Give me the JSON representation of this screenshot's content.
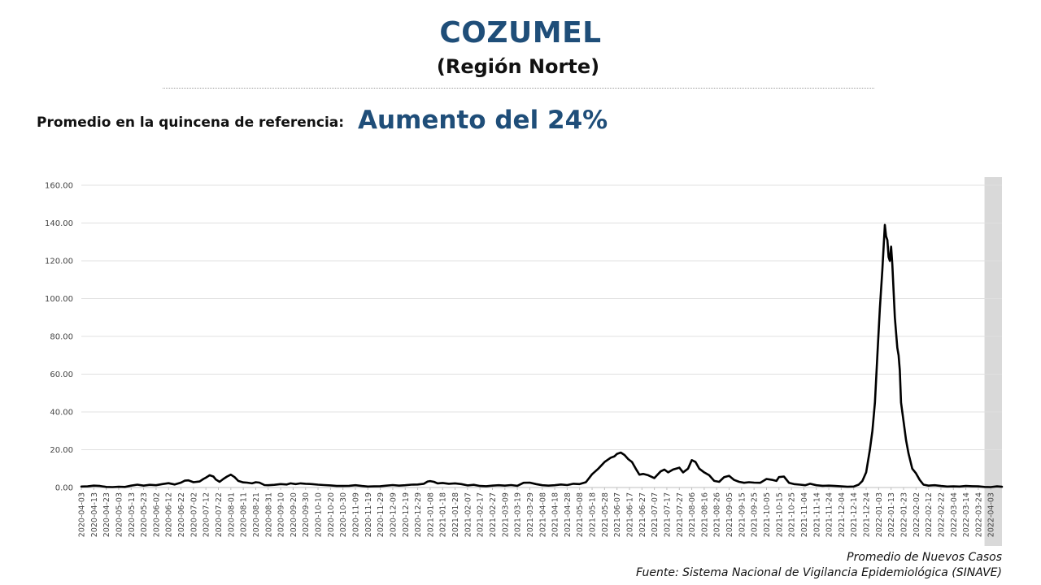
{
  "header": {
    "title": "COZUMEL",
    "subtitle": "(Región Norte)",
    "reference_label": "Promedio en la quincena de referencia:",
    "reference_value": "Aumento del 24%"
  },
  "footer": {
    "legend_text": "Promedio de Nuevos Casos",
    "source_text": "Fuente: Sistema Nacional de Vigilancia Epidemiológica (SINAVE)"
  },
  "chart_data": {
    "type": "line",
    "title": "",
    "xlabel": "",
    "ylabel": "",
    "ylim": [
      0,
      160
    ],
    "yticks": [
      "0.00",
      "20.00",
      "40.00",
      "60.00",
      "80.00",
      "100.00",
      "120.00",
      "140.00",
      "160.00"
    ],
    "grid": true,
    "line_color": "#000000",
    "shade_color": "#d9d9d9",
    "shaded_range": [
      "2022-03-29",
      "2022-04-12"
    ],
    "x_start": "2020-04-03",
    "x_end": "2022-04-12",
    "xticks": [
      "2020-04-03",
      "2020-04-13",
      "2020-04-23",
      "2020-05-03",
      "2020-05-13",
      "2020-05-23",
      "2020-06-02",
      "2020-06-12",
      "2020-06-22",
      "2020-07-02",
      "2020-07-12",
      "2020-07-22",
      "2020-08-01",
      "2020-08-11",
      "2020-08-21",
      "2020-08-31",
      "2020-09-10",
      "2020-09-20",
      "2020-09-30",
      "2020-10-10",
      "2020-10-20",
      "2020-10-30",
      "2020-11-09",
      "2020-11-19",
      "2020-11-29",
      "2020-12-09",
      "2020-12-19",
      "2020-12-29",
      "2021-01-08",
      "2021-01-18",
      "2021-01-28",
      "2021-02-07",
      "2021-02-17",
      "2021-02-27",
      "2021-03-09",
      "2021-03-19",
      "2021-03-29",
      "2021-04-08",
      "2021-04-18",
      "2021-04-28",
      "2021-05-08",
      "2021-05-18",
      "2021-05-28",
      "2021-06-07",
      "2021-06-17",
      "2021-06-27",
      "2021-07-07",
      "2021-07-17",
      "2021-07-27",
      "2021-08-06",
      "2021-08-16",
      "2021-08-26",
      "2021-09-05",
      "2021-09-15",
      "2021-09-25",
      "2021-10-05",
      "2021-10-15",
      "2021-10-25",
      "2021-11-04",
      "2021-11-14",
      "2021-11-24",
      "2021-12-04",
      "2021-12-14",
      "2021-12-24",
      "2022-01-03",
      "2022-01-13",
      "2022-01-23",
      "2022-02-02",
      "2022-02-12",
      "2022-02-22",
      "2022-03-04",
      "2022-03-14",
      "2022-03-24",
      "2022-04-03"
    ],
    "series": [
      {
        "name": "Promedio de Nuevos Casos",
        "points": [
          [
            "2020-04-03",
            0.5
          ],
          [
            "2020-04-08",
            0.6
          ],
          [
            "2020-04-13",
            1.0
          ],
          [
            "2020-04-18",
            0.8
          ],
          [
            "2020-04-23",
            0.3
          ],
          [
            "2020-04-28",
            0.2
          ],
          [
            "2020-05-03",
            0.4
          ],
          [
            "2020-05-08",
            0.3
          ],
          [
            "2020-05-13",
            1.0
          ],
          [
            "2020-05-18",
            1.5
          ],
          [
            "2020-05-23",
            1.0
          ],
          [
            "2020-05-28",
            1.4
          ],
          [
            "2020-06-02",
            1.2
          ],
          [
            "2020-06-07",
            1.8
          ],
          [
            "2020-06-12",
            2.3
          ],
          [
            "2020-06-17",
            1.6
          ],
          [
            "2020-06-22",
            2.6
          ],
          [
            "2020-06-25",
            3.6
          ],
          [
            "2020-06-28",
            3.8
          ],
          [
            "2020-07-02",
            2.8
          ],
          [
            "2020-07-07",
            3.2
          ],
          [
            "2020-07-10",
            4.5
          ],
          [
            "2020-07-12",
            5.2
          ],
          [
            "2020-07-15",
            6.5
          ],
          [
            "2020-07-18",
            5.8
          ],
          [
            "2020-07-20",
            4.2
          ],
          [
            "2020-07-23",
            3.0
          ],
          [
            "2020-07-26",
            4.5
          ],
          [
            "2020-07-29",
            5.8
          ],
          [
            "2020-08-01",
            6.8
          ],
          [
            "2020-08-04",
            5.5
          ],
          [
            "2020-08-07",
            3.5
          ],
          [
            "2020-08-11",
            2.7
          ],
          [
            "2020-08-14",
            2.6
          ],
          [
            "2020-08-18",
            2.2
          ],
          [
            "2020-08-21",
            2.8
          ],
          [
            "2020-08-24",
            2.6
          ],
          [
            "2020-08-28",
            1.3
          ],
          [
            "2020-08-31",
            1.2
          ],
          [
            "2020-09-05",
            1.4
          ],
          [
            "2020-09-10",
            1.8
          ],
          [
            "2020-09-15",
            1.6
          ],
          [
            "2020-09-18",
            2.2
          ],
          [
            "2020-09-22",
            1.8
          ],
          [
            "2020-09-26",
            2.2
          ],
          [
            "2020-09-30",
            2.0
          ],
          [
            "2020-10-05",
            1.8
          ],
          [
            "2020-10-10",
            1.5
          ],
          [
            "2020-10-15",
            1.3
          ],
          [
            "2020-10-20",
            1.1
          ],
          [
            "2020-10-25",
            0.8
          ],
          [
            "2020-10-30",
            0.8
          ],
          [
            "2020-11-04",
            0.9
          ],
          [
            "2020-11-09",
            1.2
          ],
          [
            "2020-11-14",
            0.8
          ],
          [
            "2020-11-19",
            0.5
          ],
          [
            "2020-11-24",
            0.6
          ],
          [
            "2020-11-29",
            0.7
          ],
          [
            "2020-12-04",
            1.0
          ],
          [
            "2020-12-09",
            1.3
          ],
          [
            "2020-12-14",
            1.0
          ],
          [
            "2020-12-19",
            1.2
          ],
          [
            "2020-12-24",
            1.5
          ],
          [
            "2020-12-29",
            1.6
          ],
          [
            "2021-01-03",
            2.0
          ],
          [
            "2021-01-06",
            3.2
          ],
          [
            "2021-01-08",
            3.4
          ],
          [
            "2021-01-11",
            3.0
          ],
          [
            "2021-01-14",
            2.2
          ],
          [
            "2021-01-18",
            2.4
          ],
          [
            "2021-01-23",
            2.0
          ],
          [
            "2021-01-28",
            2.2
          ],
          [
            "2021-02-02",
            1.8
          ],
          [
            "2021-02-07",
            1.1
          ],
          [
            "2021-02-12",
            1.4
          ],
          [
            "2021-02-17",
            0.8
          ],
          [
            "2021-02-22",
            0.7
          ],
          [
            "2021-02-27",
            1.0
          ],
          [
            "2021-03-04",
            1.2
          ],
          [
            "2021-03-09",
            1.0
          ],
          [
            "2021-03-14",
            1.3
          ],
          [
            "2021-03-19",
            0.9
          ],
          [
            "2021-03-24",
            2.5
          ],
          [
            "2021-03-29",
            2.6
          ],
          [
            "2021-04-03",
            1.8
          ],
          [
            "2021-04-08",
            1.2
          ],
          [
            "2021-04-13",
            1.0
          ],
          [
            "2021-04-18",
            1.2
          ],
          [
            "2021-04-23",
            1.6
          ],
          [
            "2021-04-28",
            1.3
          ],
          [
            "2021-05-03",
            2.0
          ],
          [
            "2021-05-08",
            1.8
          ],
          [
            "2021-05-13",
            2.8
          ],
          [
            "2021-05-18",
            7.0
          ],
          [
            "2021-05-23",
            10.0
          ],
          [
            "2021-05-28",
            13.5
          ],
          [
            "2021-06-02",
            15.8
          ],
          [
            "2021-06-05",
            16.5
          ],
          [
            "2021-06-07",
            17.8
          ],
          [
            "2021-06-10",
            18.5
          ],
          [
            "2021-06-13",
            17.2
          ],
          [
            "2021-06-16",
            15.0
          ],
          [
            "2021-06-19",
            13.5
          ],
          [
            "2021-06-22",
            10.0
          ],
          [
            "2021-06-25",
            6.8
          ],
          [
            "2021-06-28",
            7.2
          ],
          [
            "2021-07-02",
            6.5
          ],
          [
            "2021-07-07",
            5.0
          ],
          [
            "2021-07-12",
            8.5
          ],
          [
            "2021-07-15",
            9.5
          ],
          [
            "2021-07-18",
            8.0
          ],
          [
            "2021-07-22",
            9.5
          ],
          [
            "2021-07-27",
            10.5
          ],
          [
            "2021-07-30",
            8.0
          ],
          [
            "2021-08-03",
            10.0
          ],
          [
            "2021-08-06",
            14.5
          ],
          [
            "2021-08-09",
            13.5
          ],
          [
            "2021-08-12",
            10.0
          ],
          [
            "2021-08-16",
            8.0
          ],
          [
            "2021-08-20",
            6.5
          ],
          [
            "2021-08-24",
            3.5
          ],
          [
            "2021-08-28",
            3.0
          ],
          [
            "2021-09-01",
            5.5
          ],
          [
            "2021-09-05",
            6.2
          ],
          [
            "2021-09-09",
            4.0
          ],
          [
            "2021-09-13",
            3.0
          ],
          [
            "2021-09-17",
            2.5
          ],
          [
            "2021-09-21",
            2.8
          ],
          [
            "2021-09-25",
            2.6
          ],
          [
            "2021-09-30",
            2.5
          ],
          [
            "2021-10-05",
            4.5
          ],
          [
            "2021-10-10",
            4.0
          ],
          [
            "2021-10-13",
            3.5
          ],
          [
            "2021-10-15",
            5.5
          ],
          [
            "2021-10-19",
            5.8
          ],
          [
            "2021-10-23",
            2.5
          ],
          [
            "2021-10-27",
            1.8
          ],
          [
            "2021-11-01",
            1.5
          ],
          [
            "2021-11-05",
            1.2
          ],
          [
            "2021-11-09",
            2.0
          ],
          [
            "2021-11-14",
            1.2
          ],
          [
            "2021-11-19",
            0.9
          ],
          [
            "2021-11-24",
            1.0
          ],
          [
            "2021-11-29",
            0.8
          ],
          [
            "2021-12-04",
            0.6
          ],
          [
            "2021-12-09",
            0.4
          ],
          [
            "2021-12-14",
            0.5
          ],
          [
            "2021-12-18",
            1.5
          ],
          [
            "2021-12-21",
            3.5
          ],
          [
            "2021-12-24",
            8.0
          ],
          [
            "2021-12-27",
            20.0
          ],
          [
            "2021-12-29",
            30.0
          ],
          [
            "2021-12-31",
            45.0
          ],
          [
            "2022-01-02",
            70.0
          ],
          [
            "2022-01-04",
            95.0
          ],
          [
            "2022-01-06",
            115.0
          ],
          [
            "2022-01-08",
            139.0
          ],
          [
            "2022-01-09",
            133.0
          ],
          [
            "2022-01-10",
            131.0
          ],
          [
            "2022-01-11",
            122.0
          ],
          [
            "2022-01-12",
            120.0
          ],
          [
            "2022-01-13",
            127.5
          ],
          [
            "2022-01-14",
            118.0
          ],
          [
            "2022-01-16",
            90.0
          ],
          [
            "2022-01-18",
            74.0
          ],
          [
            "2022-01-19",
            70.0
          ],
          [
            "2022-01-20",
            62.0
          ],
          [
            "2022-01-21",
            45.0
          ],
          [
            "2022-01-23",
            35.0
          ],
          [
            "2022-01-25",
            25.0
          ],
          [
            "2022-01-27",
            18.0
          ],
          [
            "2022-01-30",
            10.0
          ],
          [
            "2022-02-02",
            7.5
          ],
          [
            "2022-02-05",
            4.0
          ],
          [
            "2022-02-08",
            1.5
          ],
          [
            "2022-02-12",
            1.0
          ],
          [
            "2022-02-17",
            1.2
          ],
          [
            "2022-02-22",
            0.8
          ],
          [
            "2022-02-27",
            0.5
          ],
          [
            "2022-03-04",
            0.6
          ],
          [
            "2022-03-09",
            0.5
          ],
          [
            "2022-03-14",
            0.8
          ],
          [
            "2022-03-19",
            0.7
          ],
          [
            "2022-03-24",
            0.6
          ],
          [
            "2022-03-29",
            0.3
          ],
          [
            "2022-04-03",
            0.2
          ],
          [
            "2022-04-08",
            0.6
          ],
          [
            "2022-04-12",
            0.4
          ]
        ]
      }
    ]
  }
}
